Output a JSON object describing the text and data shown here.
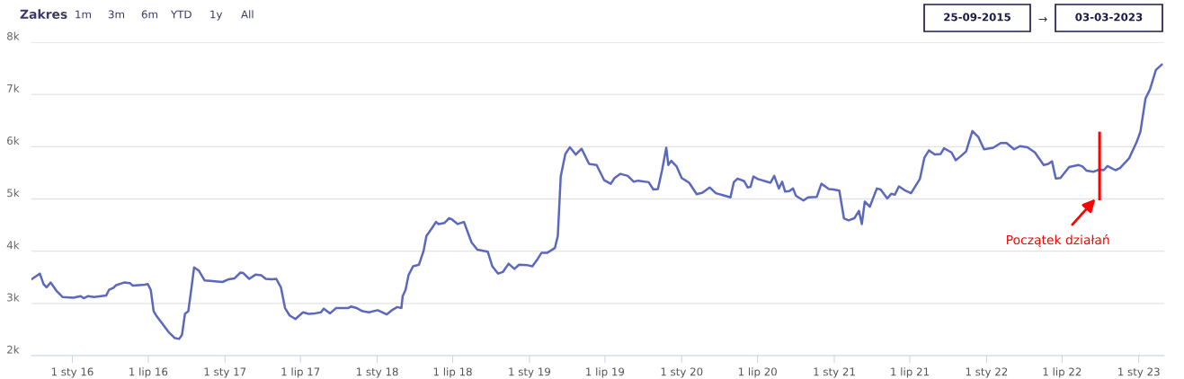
{
  "chart_data": {
    "type": "line",
    "annotations": [
      "Zakres",
      "1m",
      "3m",
      "6m",
      "YTD",
      "1y",
      "All",
      "25-09-2015",
      "→",
      "03-03-2023",
      {
        "text": "Początek działań",
        "x": "2022-09-29",
        "y": 5000
      }
    ],
    "x": [
      "2015-09-25",
      "2015-10-15",
      "2015-10-24",
      "2015-10-31",
      "2015-11-10",
      "2015-11-25",
      "2015-12-09",
      "2016-01-03",
      "2016-01-21",
      "2016-01-28",
      "2016-02-08",
      "2016-02-22",
      "2016-03-22",
      "2016-03-29",
      "2016-04-09",
      "2016-04-15",
      "2016-05-04",
      "2016-05-18",
      "2016-05-25",
      "2016-06-23",
      "2016-06-30",
      "2016-07-07",
      "2016-07-14",
      "2016-07-20",
      "2016-08-19",
      "2016-09-02",
      "2016-09-13",
      "2016-09-20",
      "2016-09-27",
      "2016-10-05",
      "2016-10-12",
      "2016-10-19",
      "2016-10-30",
      "2016-11-13",
      "2016-11-27",
      "2016-12-26",
      "2017-01-09",
      "2017-01-24",
      "2017-02-07",
      "2017-02-14",
      "2017-02-28",
      "2017-03-15",
      "2017-03-29",
      "2017-04-09",
      "2017-04-23",
      "2017-05-04",
      "2017-05-15",
      "2017-05-25",
      "2017-06-05",
      "2017-06-19",
      "2017-07-07",
      "2017-07-21",
      "2017-08-05",
      "2017-08-19",
      "2017-08-26",
      "2017-09-10",
      "2017-09-24",
      "2017-10-23",
      "2017-10-30",
      "2017-11-13",
      "2017-11-27",
      "2017-12-12",
      "2018-01-02",
      "2018-01-24",
      "2018-02-07",
      "2018-02-18",
      "2018-02-28",
      "2018-03-03",
      "2018-03-10",
      "2018-03-17",
      "2018-03-28",
      "2018-04-11",
      "2018-04-22",
      "2018-04-29",
      "2018-05-13",
      "2018-05-22",
      "2018-05-28",
      "2018-06-11",
      "2018-06-22",
      "2018-06-29",
      "2018-07-13",
      "2018-07-28",
      "2018-08-15",
      "2018-08-29",
      "2018-09-23",
      "2018-10-04",
      "2018-10-18",
      "2018-10-29",
      "2018-11-12",
      "2018-11-26",
      "2018-12-07",
      "2018-12-28",
      "2019-01-08",
      "2019-01-19",
      "2019-01-30",
      "2019-02-13",
      "2019-03-03",
      "2019-03-10",
      "2019-03-17",
      "2019-03-28",
      "2019-04-08",
      "2019-04-22",
      "2019-05-06",
      "2019-05-24",
      "2019-06-11",
      "2019-06-29",
      "2019-07-15",
      "2019-07-24",
      "2019-08-07",
      "2019-08-25",
      "2019-09-08",
      "2019-09-19",
      "2019-10-14",
      "2019-10-25",
      "2019-11-05",
      "2019-11-15",
      "2019-11-25",
      "2019-11-30",
      "2019-12-07",
      "2019-12-20",
      "2020-01-01",
      "2020-01-19",
      "2020-02-06",
      "2020-02-20",
      "2020-03-08",
      "2020-03-23",
      "2020-04-14",
      "2020-04-27",
      "2020-05-05",
      "2020-05-14",
      "2020-05-30",
      "2020-06-07",
      "2020-06-14",
      "2020-06-21",
      "2020-07-02",
      "2020-08-01",
      "2020-08-10",
      "2020-08-21",
      "2020-08-29",
      "2020-09-05",
      "2020-09-15",
      "2020-09-24",
      "2020-10-01",
      "2020-10-19",
      "2020-10-30",
      "2020-11-20",
      "2020-12-01",
      "2020-12-19",
      "2020-12-30",
      "2021-01-13",
      "2021-01-24",
      "2021-02-04",
      "2021-02-18",
      "2021-03-01",
      "2021-03-08",
      "2021-03-15",
      "2021-03-27",
      "2021-04-13",
      "2021-04-22",
      "2021-05-08",
      "2021-05-18",
      "2021-05-26",
      "2021-06-05",
      "2021-06-20",
      "2021-07-04",
      "2021-07-25",
      "2021-08-05",
      "2021-08-16",
      "2021-08-30",
      "2021-09-13",
      "2021-09-21",
      "2021-10-09",
      "2021-10-19",
      "2021-10-30",
      "2021-11-13",
      "2021-11-28",
      "2021-12-12",
      "2021-12-26",
      "2022-01-17",
      "2022-02-04",
      "2022-02-18",
      "2022-03-08",
      "2022-03-22",
      "2022-04-09",
      "2022-04-27",
      "2022-05-18",
      "2022-05-29",
      "2022-06-07",
      "2022-06-16",
      "2022-06-27",
      "2022-07-18",
      "2022-08-09",
      "2022-08-19",
      "2022-08-29",
      "2022-09-14",
      "2022-09-28",
      "2022-10-09",
      "2022-10-18",
      "2022-11-06",
      "2022-11-17",
      "2022-12-09",
      "2022-12-27",
      "2023-01-05",
      "2023-01-17",
      "2023-01-28",
      "2023-02-11",
      "2023-02-25"
    ],
    "series": [
      {
        "color": "#5b68bf",
        "values": [
          3460,
          3570,
          3370,
          3310,
          3400,
          3230,
          3120,
          3110,
          3140,
          3100,
          3140,
          3120,
          3150,
          3260,
          3300,
          3350,
          3400,
          3390,
          3340,
          3360,
          3370,
          3260,
          2850,
          2770,
          2450,
          2340,
          2320,
          2400,
          2800,
          2850,
          3260,
          3690,
          3630,
          3440,
          3430,
          3410,
          3460,
          3480,
          3590,
          3580,
          3470,
          3550,
          3540,
          3470,
          3460,
          3470,
          3310,
          2910,
          2770,
          2700,
          2830,
          2800,
          2810,
          2830,
          2900,
          2810,
          2910,
          2910,
          2940,
          2910,
          2850,
          2830,
          2870,
          2790,
          2880,
          2930,
          2910,
          3140,
          3260,
          3540,
          3710,
          3740,
          4000,
          4290,
          4450,
          4560,
          4520,
          4540,
          4630,
          4610,
          4520,
          4560,
          4170,
          4030,
          3990,
          3710,
          3570,
          3600,
          3760,
          3660,
          3740,
          3730,
          3710,
          3830,
          3970,
          3970,
          4060,
          4290,
          5430,
          5860,
          5990,
          5850,
          5960,
          5670,
          5650,
          5360,
          5290,
          5400,
          5480,
          5440,
          5330,
          5350,
          5320,
          5180,
          5190,
          5550,
          5980,
          5650,
          5730,
          5620,
          5400,
          5310,
          5090,
          5120,
          5220,
          5110,
          5060,
          5030,
          5320,
          5390,
          5340,
          5220,
          5230,
          5430,
          5380,
          5310,
          5440,
          5200,
          5330,
          5140,
          5150,
          5200,
          5060,
          4970,
          5030,
          5040,
          5290,
          5190,
          5180,
          5160,
          4630,
          4590,
          4630,
          4770,
          4520,
          4950,
          4850,
          5200,
          5180,
          5010,
          5100,
          5080,
          5240,
          5160,
          5110,
          5380,
          5790,
          5930,
          5850,
          5860,
          5970,
          5890,
          5740,
          5810,
          5910,
          6300,
          6190,
          5950,
          5980,
          6070,
          6070,
          5950,
          6010,
          5990,
          5890,
          5650,
          5670,
          5720,
          5390,
          5400,
          5610,
          5650,
          5620,
          5540,
          5520,
          5560,
          5550,
          5630,
          5550,
          5590,
          5780,
          6090,
          6290,
          6920,
          7100,
          7470,
          7570
        ]
      }
    ],
    "xlim": [
      "2015-09-25",
      "2023-03-03"
    ],
    "xticks": [
      {
        "value": "2016-01-01",
        "label": "1 sty 16"
      },
      {
        "value": "2016-07-01",
        "label": "1 lip 16"
      },
      {
        "value": "2017-01-01",
        "label": "1 sty 17"
      },
      {
        "value": "2017-07-01",
        "label": "1 lip 17"
      },
      {
        "value": "2018-01-01",
        "label": "1 sty 18"
      },
      {
        "value": "2018-07-01",
        "label": "1 lip 18"
      },
      {
        "value": "2019-01-01",
        "label": "1 sty 19"
      },
      {
        "value": "2019-07-01",
        "label": "1 lip 19"
      },
      {
        "value": "2020-01-01",
        "label": "1 sty 20"
      },
      {
        "value": "2020-07-01",
        "label": "1 lip 20"
      },
      {
        "value": "2021-01-01",
        "label": "1 sty 21"
      },
      {
        "value": "2021-07-01",
        "label": "1 lip 21"
      },
      {
        "value": "2022-01-01",
        "label": "1 sty 22"
      },
      {
        "value": "2022-07-01",
        "label": "1 lip 22"
      },
      {
        "value": "2023-01-01",
        "label": "1 sty 23"
      }
    ],
    "ylim": [
      2000,
      8000
    ],
    "yticks": [
      {
        "value": 2000,
        "label": "2k"
      },
      {
        "value": 3000,
        "label": "3k"
      },
      {
        "value": 4000,
        "label": "4k"
      },
      {
        "value": 5000,
        "label": "5k"
      },
      {
        "value": 6000,
        "label": "6k"
      },
      {
        "value": 7000,
        "label": "7k"
      },
      {
        "value": 8000,
        "label": "8k"
      }
    ],
    "ref_lines": [
      {
        "axis": "x",
        "value": "2022-09-29",
        "color": "#ff0000"
      }
    ],
    "grid": "y",
    "legend": false,
    "marker": "none",
    "line_style": "solid"
  }
}
